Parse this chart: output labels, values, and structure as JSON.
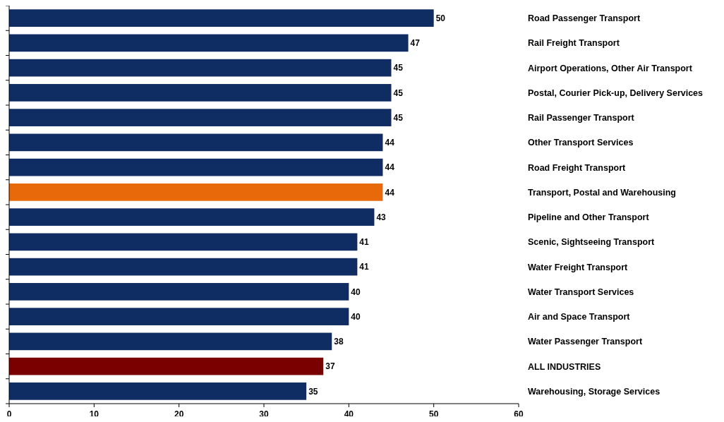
{
  "chart_data": {
    "type": "bar",
    "orientation": "horizontal",
    "categories": [
      "Road Passenger Transport",
      "Rail Freight Transport",
      "Airport Operations, Other Air Transport",
      "Postal, Courier Pick-up, Delivery Services",
      "Rail Passenger Transport",
      "Other Transport Services",
      "Road Freight Transport",
      "Transport, Postal and Warehousing",
      "Pipeline and Other Transport",
      "Scenic, Sightseeing Transport",
      "Water Freight Transport",
      "Water Transport Services",
      "Air and Space Transport",
      "Water Passenger Transport",
      "ALL INDUSTRIES",
      "Warehousing, Storage Services"
    ],
    "values": [
      50,
      47,
      45,
      45,
      45,
      44,
      44,
      44,
      43,
      41,
      41,
      40,
      40,
      38,
      37,
      35
    ],
    "colors": [
      "#0f2d62",
      "#0f2d62",
      "#0f2d62",
      "#0f2d62",
      "#0f2d62",
      "#0f2d62",
      "#0f2d62",
      "#e8690a",
      "#0f2d62",
      "#0f2d62",
      "#0f2d62",
      "#0f2d62",
      "#0f2d62",
      "#0f2d62",
      "#7a0000",
      "#0f2d62"
    ],
    "xlim": [
      0,
      60
    ],
    "xticks": [
      0,
      10,
      20,
      30,
      40,
      50,
      60
    ],
    "data_labels": true,
    "grid": false
  }
}
